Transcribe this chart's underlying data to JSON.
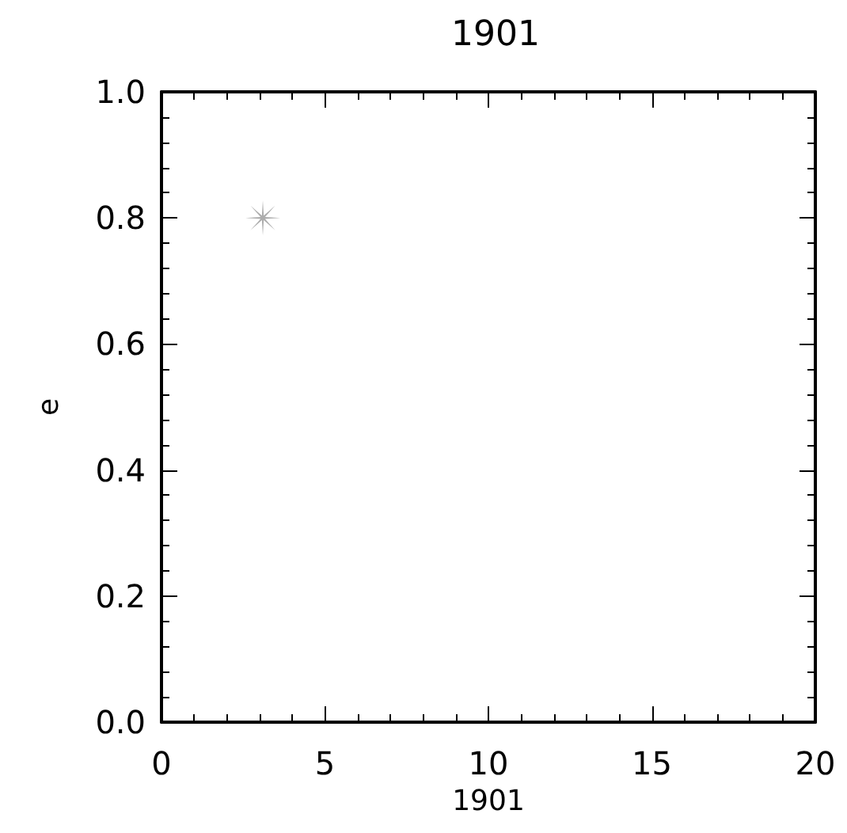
{
  "chart_data": {
    "type": "scatter",
    "title": "1901",
    "xlabel": "1901",
    "ylabel": "e",
    "x": [
      3.1
    ],
    "series": [
      {
        "color": "#999999",
        "values": [
          0.8
        ]
      }
    ],
    "marker": "star",
    "grid": false,
    "xlim": [
      0,
      20
    ],
    "xticks": [
      0,
      5,
      10,
      15,
      20
    ],
    "ylim": [
      0,
      1
    ],
    "yticks": [
      {
        "value": 0,
        "label": "0.0"
      },
      {
        "value": 0.2,
        "label": "0.2"
      },
      {
        "value": 0.4,
        "label": "0.4"
      },
      {
        "value": 0.6,
        "label": "0.6"
      },
      {
        "value": 0.8,
        "label": "0.8"
      },
      {
        "value": 1,
        "label": "1.0"
      }
    ]
  }
}
